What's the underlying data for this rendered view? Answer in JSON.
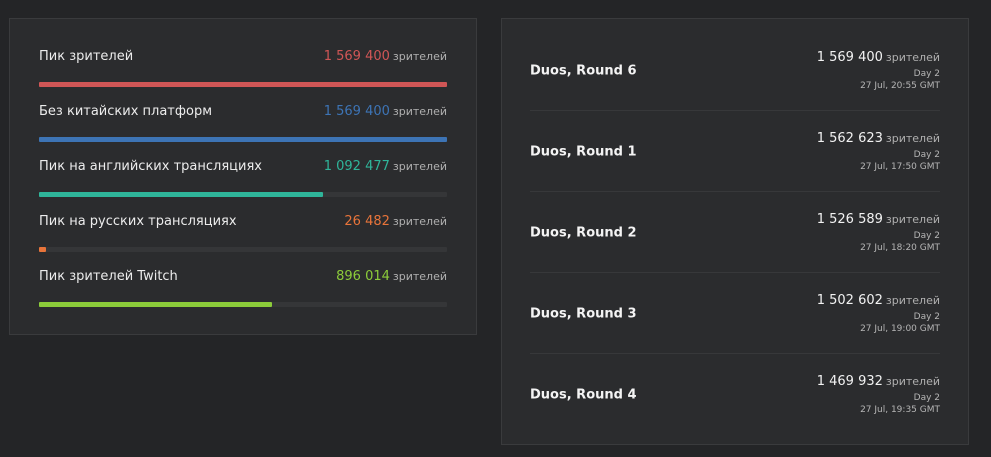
{
  "stats": [
    {
      "label": "Пик зрителей",
      "value": "1 569 400",
      "unit": "зрителей",
      "color": "#d05656",
      "fraction": 1.0
    },
    {
      "label": "Без китайских платформ",
      "value": "1 569 400",
      "unit": "зрителей",
      "color": "#3d74b5",
      "fraction": 1.0
    },
    {
      "label": "Пик на английских трансляциях",
      "value": "1 092 477",
      "unit": "зрителей",
      "color": "#2fb59a",
      "fraction": 0.696
    },
    {
      "label": "Пик на русских трансляциях",
      "value": "26 482",
      "unit": "зрителей",
      "color": "#e8743a",
      "fraction": 0.017
    },
    {
      "label": "Пик зрителей Twitch",
      "value": "896 014",
      "unit": "зрителей",
      "color": "#8ccc3a",
      "fraction": 0.571
    }
  ],
  "matches": [
    {
      "title": "Duos, Round 6",
      "viewers": "1 569 400",
      "unit": "зрителей",
      "day": "Day 2",
      "time": "27 Jul, 20:55 GMT"
    },
    {
      "title": "Duos, Round 1",
      "viewers": "1 562 623",
      "unit": "зрителей",
      "day": "Day 2",
      "time": "27 Jul, 17:50 GMT"
    },
    {
      "title": "Duos, Round 2",
      "viewers": "1 526 589",
      "unit": "зрителей",
      "day": "Day 2",
      "time": "27 Jul, 18:20 GMT"
    },
    {
      "title": "Duos, Round 3",
      "viewers": "1 502 602",
      "unit": "зрителей",
      "day": "Day 2",
      "time": "27 Jul, 19:00 GMT"
    },
    {
      "title": "Duos, Round 4",
      "viewers": "1 469 932",
      "unit": "зрителей",
      "day": "Day 2",
      "time": "27 Jul, 19:35 GMT"
    }
  ]
}
